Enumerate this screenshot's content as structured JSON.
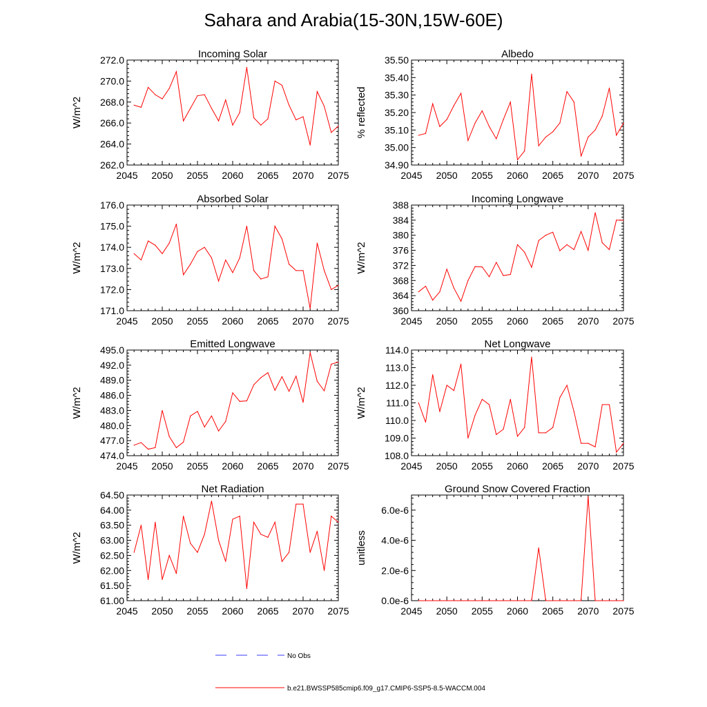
{
  "title": "Sahara and Arabia(15-30N,15W-60E)",
  "colors": {
    "series": "#ff0000",
    "obs": "#3a3aff",
    "axis": "#000000"
  },
  "legend": [
    {
      "label": "No Obs",
      "style": "dashed",
      "color": "#3a3aff"
    },
    {
      "label": "b.e21.BWSSP585cmip6.f09_g17.CMIP6-SSP5-8.5-WACCM.004",
      "style": "solid",
      "color": "#ff0000"
    }
  ],
  "chart_data": [
    {
      "type": "line",
      "title": "Incoming Solar",
      "ylabel": "W/m^2",
      "xlim": [
        2045,
        2075
      ],
      "ylim": [
        262.0,
        272.0
      ],
      "xticks": [
        2045,
        2050,
        2055,
        2060,
        2065,
        2070,
        2075
      ],
      "xtick_labels": [
        "2045",
        "2050",
        "2055",
        "2060",
        "2065",
        "2070",
        "2075"
      ],
      "yticks": [
        262.0,
        264.0,
        266.0,
        268.0,
        270.0,
        272.0
      ],
      "ytick_labels": [
        "262.0",
        "264.0",
        "266.0",
        "268.0",
        "270.0",
        "272.0"
      ],
      "series": [
        {
          "name": "b.e21.BWSSP585cmip6.f09_g17.CMIP6-SSP5-8.5-WACCM.004",
          "x": [
            2046,
            2047,
            2048,
            2049,
            2050,
            2051,
            2052,
            2053,
            2054,
            2055,
            2056,
            2057,
            2058,
            2059,
            2060,
            2061,
            2062,
            2063,
            2064,
            2065,
            2066,
            2067,
            2068,
            2069,
            2070,
            2071,
            2072,
            2073,
            2074,
            2075
          ],
          "values": [
            267.7,
            267.5,
            269.4,
            268.7,
            268.3,
            269.3,
            270.9,
            266.2,
            267.4,
            268.6,
            268.7,
            267.4,
            266.2,
            268.2,
            265.8,
            267.0,
            271.3,
            266.5,
            265.8,
            266.4,
            270.0,
            269.6,
            267.7,
            266.3,
            266.6,
            263.9,
            269.0,
            267.6,
            265.1,
            265.7
          ]
        }
      ]
    },
    {
      "type": "line",
      "title": "Albedo",
      "ylabel": "% reflected",
      "xlim": [
        2045,
        2075
      ],
      "ylim": [
        34.9,
        35.5
      ],
      "xticks": [
        2045,
        2050,
        2055,
        2060,
        2065,
        2070,
        2075
      ],
      "xtick_labels": [
        "2045",
        "2050",
        "2055",
        "2060",
        "2065",
        "2070",
        "2075"
      ],
      "yticks": [
        34.9,
        35.0,
        35.1,
        35.2,
        35.3,
        35.4,
        35.5
      ],
      "ytick_labels": [
        "34.90",
        "35.00",
        "35.10",
        "35.20",
        "35.30",
        "35.40",
        "35.50"
      ],
      "series": [
        {
          "name": "b.e21.BWSSP585cmip6.f09_g17.CMIP6-SSP5-8.5-WACCM.004",
          "x": [
            2046,
            2047,
            2048,
            2049,
            2050,
            2051,
            2052,
            2053,
            2054,
            2055,
            2056,
            2057,
            2058,
            2059,
            2060,
            2061,
            2062,
            2063,
            2064,
            2065,
            2066,
            2067,
            2068,
            2069,
            2070,
            2071,
            2072,
            2073,
            2074,
            2075
          ],
          "values": [
            35.07,
            35.08,
            35.25,
            35.12,
            35.16,
            35.24,
            35.31,
            35.04,
            35.14,
            35.21,
            35.12,
            35.05,
            35.16,
            35.26,
            34.93,
            34.98,
            35.42,
            35.01,
            35.06,
            35.09,
            35.14,
            35.32,
            35.26,
            34.95,
            35.06,
            35.1,
            35.18,
            35.34,
            35.07,
            35.14
          ]
        }
      ]
    },
    {
      "type": "line",
      "title": "Absorbed Solar",
      "ylabel": "W/m^2",
      "xlim": [
        2045,
        2075
      ],
      "ylim": [
        171.0,
        176.0
      ],
      "xticks": [
        2045,
        2050,
        2055,
        2060,
        2065,
        2070,
        2075
      ],
      "xtick_labels": [
        "2045",
        "2050",
        "2055",
        "2060",
        "2065",
        "2070",
        "2075"
      ],
      "yticks": [
        171.0,
        172.0,
        173.0,
        174.0,
        175.0,
        176.0
      ],
      "ytick_labels": [
        "171.0",
        "172.0",
        "173.0",
        "174.0",
        "175.0",
        "176.0"
      ],
      "series": [
        {
          "name": "b.e21.BWSSP585cmip6.f09_g17.CMIP6-SSP5-8.5-WACCM.004",
          "x": [
            2046,
            2047,
            2048,
            2049,
            2050,
            2051,
            2052,
            2053,
            2054,
            2055,
            2056,
            2057,
            2058,
            2059,
            2060,
            2061,
            2062,
            2063,
            2064,
            2065,
            2066,
            2067,
            2068,
            2069,
            2070,
            2071,
            2072,
            2073,
            2074,
            2075
          ],
          "values": [
            173.7,
            173.4,
            174.3,
            174.1,
            173.7,
            174.2,
            175.1,
            172.7,
            173.2,
            173.8,
            174.0,
            173.5,
            172.4,
            173.4,
            172.8,
            173.5,
            175.0,
            172.9,
            172.5,
            172.6,
            175.0,
            174.4,
            173.2,
            172.9,
            172.9,
            171.1,
            174.2,
            172.9,
            172.0,
            172.2
          ]
        }
      ]
    },
    {
      "type": "line",
      "title": "Incoming Longwave",
      "ylabel": "W/m^2",
      "xlim": [
        2045,
        2075
      ],
      "ylim": [
        360,
        388
      ],
      "xticks": [
        2045,
        2050,
        2055,
        2060,
        2065,
        2070,
        2075
      ],
      "xtick_labels": [
        "2045",
        "2050",
        "2055",
        "2060",
        "2065",
        "2070",
        "2075"
      ],
      "yticks": [
        360,
        364,
        368,
        372,
        376,
        380,
        384,
        388
      ],
      "ytick_labels": [
        "360",
        "364",
        "368",
        "372",
        "376",
        "380",
        "384",
        "388"
      ],
      "series": [
        {
          "name": "b.e21.BWSSP585cmip6.f09_g17.CMIP6-SSP5-8.5-WACCM.004",
          "x": [
            2046,
            2047,
            2048,
            2049,
            2050,
            2051,
            2052,
            2053,
            2054,
            2055,
            2056,
            2057,
            2058,
            2059,
            2060,
            2061,
            2062,
            2063,
            2064,
            2065,
            2066,
            2067,
            2068,
            2069,
            2070,
            2071,
            2072,
            2073,
            2074,
            2075
          ],
          "values": [
            365.0,
            366.5,
            362.8,
            365.0,
            371.0,
            366.0,
            362.5,
            368.0,
            371.7,
            371.6,
            369.0,
            372.8,
            369.3,
            369.6,
            377.5,
            375.5,
            371.5,
            378.6,
            380.0,
            380.8,
            375.9,
            377.5,
            376.2,
            381.0,
            376.0,
            386.0,
            378.0,
            376.2,
            384.0,
            384.0
          ]
        }
      ]
    },
    {
      "type": "line",
      "title": "Emitted Longwave",
      "ylabel": "W/m^2",
      "xlim": [
        2045,
        2075
      ],
      "ylim": [
        474.0,
        495.0
      ],
      "xticks": [
        2045,
        2050,
        2055,
        2060,
        2065,
        2070,
        2075
      ],
      "xtick_labels": [
        "2045",
        "2050",
        "2055",
        "2060",
        "2065",
        "2070",
        "2075"
      ],
      "yticks": [
        474.0,
        477.0,
        480.0,
        483.0,
        486.0,
        489.0,
        492.0,
        495.0
      ],
      "ytick_labels": [
        "474.0",
        "477.0",
        "480.0",
        "483.0",
        "486.0",
        "489.0",
        "492.0",
        "495.0"
      ],
      "series": [
        {
          "name": "b.e21.BWSSP585cmip6.f09_g17.CMIP6-SSP5-8.5-WACCM.004",
          "x": [
            2046,
            2047,
            2048,
            2049,
            2050,
            2051,
            2052,
            2053,
            2054,
            2055,
            2056,
            2057,
            2058,
            2059,
            2060,
            2061,
            2062,
            2063,
            2064,
            2065,
            2066,
            2067,
            2068,
            2069,
            2070,
            2071,
            2072,
            2073,
            2074,
            2075
          ],
          "values": [
            476.1,
            476.6,
            475.3,
            475.6,
            483.0,
            477.8,
            475.6,
            476.7,
            481.9,
            482.8,
            479.7,
            481.9,
            478.9,
            480.8,
            486.5,
            484.8,
            484.9,
            488.1,
            489.5,
            490.5,
            487.0,
            489.7,
            486.8,
            489.8,
            484.6,
            494.5,
            488.8,
            486.9,
            492.2,
            492.6
          ]
        }
      ]
    },
    {
      "type": "line",
      "title": "Net Longwave",
      "ylabel": "W/m^2",
      "xlim": [
        2045,
        2075
      ],
      "ylim": [
        108.0,
        114.0
      ],
      "xticks": [
        2045,
        2050,
        2055,
        2060,
        2065,
        2070,
        2075
      ],
      "xtick_labels": [
        "2045",
        "2050",
        "2055",
        "2060",
        "2065",
        "2070",
        "2075"
      ],
      "yticks": [
        108.0,
        109.0,
        110.0,
        111.0,
        112.0,
        113.0,
        114.0
      ],
      "ytick_labels": [
        "108.0",
        "109.0",
        "110.0",
        "111.0",
        "112.0",
        "113.0",
        "114.0"
      ],
      "series": [
        {
          "name": "b.e21.BWSSP585cmip6.f09_g17.CMIP6-SSP5-8.5-WACCM.004",
          "x": [
            2046,
            2047,
            2048,
            2049,
            2050,
            2051,
            2052,
            2053,
            2054,
            2055,
            2056,
            2057,
            2058,
            2059,
            2060,
            2061,
            2062,
            2063,
            2064,
            2065,
            2066,
            2067,
            2068,
            2069,
            2070,
            2071,
            2072,
            2073,
            2074,
            2075
          ],
          "values": [
            111.0,
            109.9,
            112.6,
            110.5,
            112.0,
            111.7,
            113.2,
            109.0,
            110.3,
            111.2,
            110.9,
            109.2,
            109.5,
            111.2,
            109.1,
            109.6,
            113.6,
            109.3,
            109.3,
            109.6,
            111.3,
            112.0,
            110.5,
            108.7,
            108.7,
            108.5,
            110.9,
            110.9,
            108.2,
            108.7
          ]
        }
      ]
    },
    {
      "type": "line",
      "title": "Net Radiation",
      "ylabel": "W/m^2",
      "xlim": [
        2045,
        2075
      ],
      "ylim": [
        61.0,
        64.5
      ],
      "xticks": [
        2045,
        2050,
        2055,
        2060,
        2065,
        2070,
        2075
      ],
      "xtick_labels": [
        "2045",
        "2050",
        "2055",
        "2060",
        "2065",
        "2070",
        "2075"
      ],
      "yticks": [
        61.0,
        61.5,
        62.0,
        62.5,
        63.0,
        63.5,
        64.0,
        64.5
      ],
      "ytick_labels": [
        "61.00",
        "61.50",
        "62.00",
        "62.50",
        "63.00",
        "63.50",
        "64.00",
        "64.50"
      ],
      "series": [
        {
          "name": "b.e21.BWSSP585cmip6.f09_g17.CMIP6-SSP5-8.5-WACCM.004",
          "x": [
            2046,
            2047,
            2048,
            2049,
            2050,
            2051,
            2052,
            2053,
            2054,
            2055,
            2056,
            2057,
            2058,
            2059,
            2060,
            2061,
            2062,
            2063,
            2064,
            2065,
            2066,
            2067,
            2068,
            2069,
            2070,
            2071,
            2072,
            2073,
            2074,
            2075
          ],
          "values": [
            62.6,
            63.5,
            61.7,
            63.6,
            61.7,
            62.5,
            61.9,
            63.8,
            62.9,
            62.6,
            63.2,
            64.3,
            63.0,
            62.3,
            63.7,
            63.8,
            61.4,
            63.6,
            63.2,
            63.1,
            63.6,
            62.3,
            62.6,
            64.2,
            64.2,
            62.6,
            63.3,
            62.0,
            63.8,
            63.6
          ]
        }
      ]
    },
    {
      "type": "line",
      "title": "Ground Snow Covered Fraction",
      "ylabel": "unitless",
      "xlim": [
        2045,
        2075
      ],
      "ylim": [
        0,
        7e-06
      ],
      "xticks": [
        2045,
        2050,
        2055,
        2060,
        2065,
        2070,
        2075
      ],
      "xtick_labels": [
        "2045",
        "2050",
        "2055",
        "2060",
        "2065",
        "2070",
        "2075"
      ],
      "yticks": [
        0,
        2e-06,
        4e-06,
        6e-06
      ],
      "ytick_labels": [
        "0.0e-6",
        "2.0e-6",
        "4.0e-6",
        "6.0e-6"
      ],
      "series": [
        {
          "name": "b.e21.BWSSP585cmip6.f09_g17.CMIP6-SSP5-8.5-WACCM.004",
          "x": [
            2046,
            2047,
            2048,
            2049,
            2050,
            2051,
            2052,
            2053,
            2054,
            2055,
            2056,
            2057,
            2058,
            2059,
            2060,
            2061,
            2062,
            2063,
            2064,
            2065,
            2066,
            2067,
            2068,
            2069,
            2070,
            2071,
            2072,
            2073,
            2074,
            2075
          ],
          "values": [
            0,
            0,
            0,
            0,
            0,
            0,
            0,
            0,
            0,
            0,
            0,
            0,
            0,
            0,
            0,
            0,
            0,
            3.5e-06,
            0,
            0,
            0,
            0,
            0,
            0,
            6.9e-06,
            0,
            0,
            0,
            0,
            0
          ]
        }
      ]
    }
  ]
}
